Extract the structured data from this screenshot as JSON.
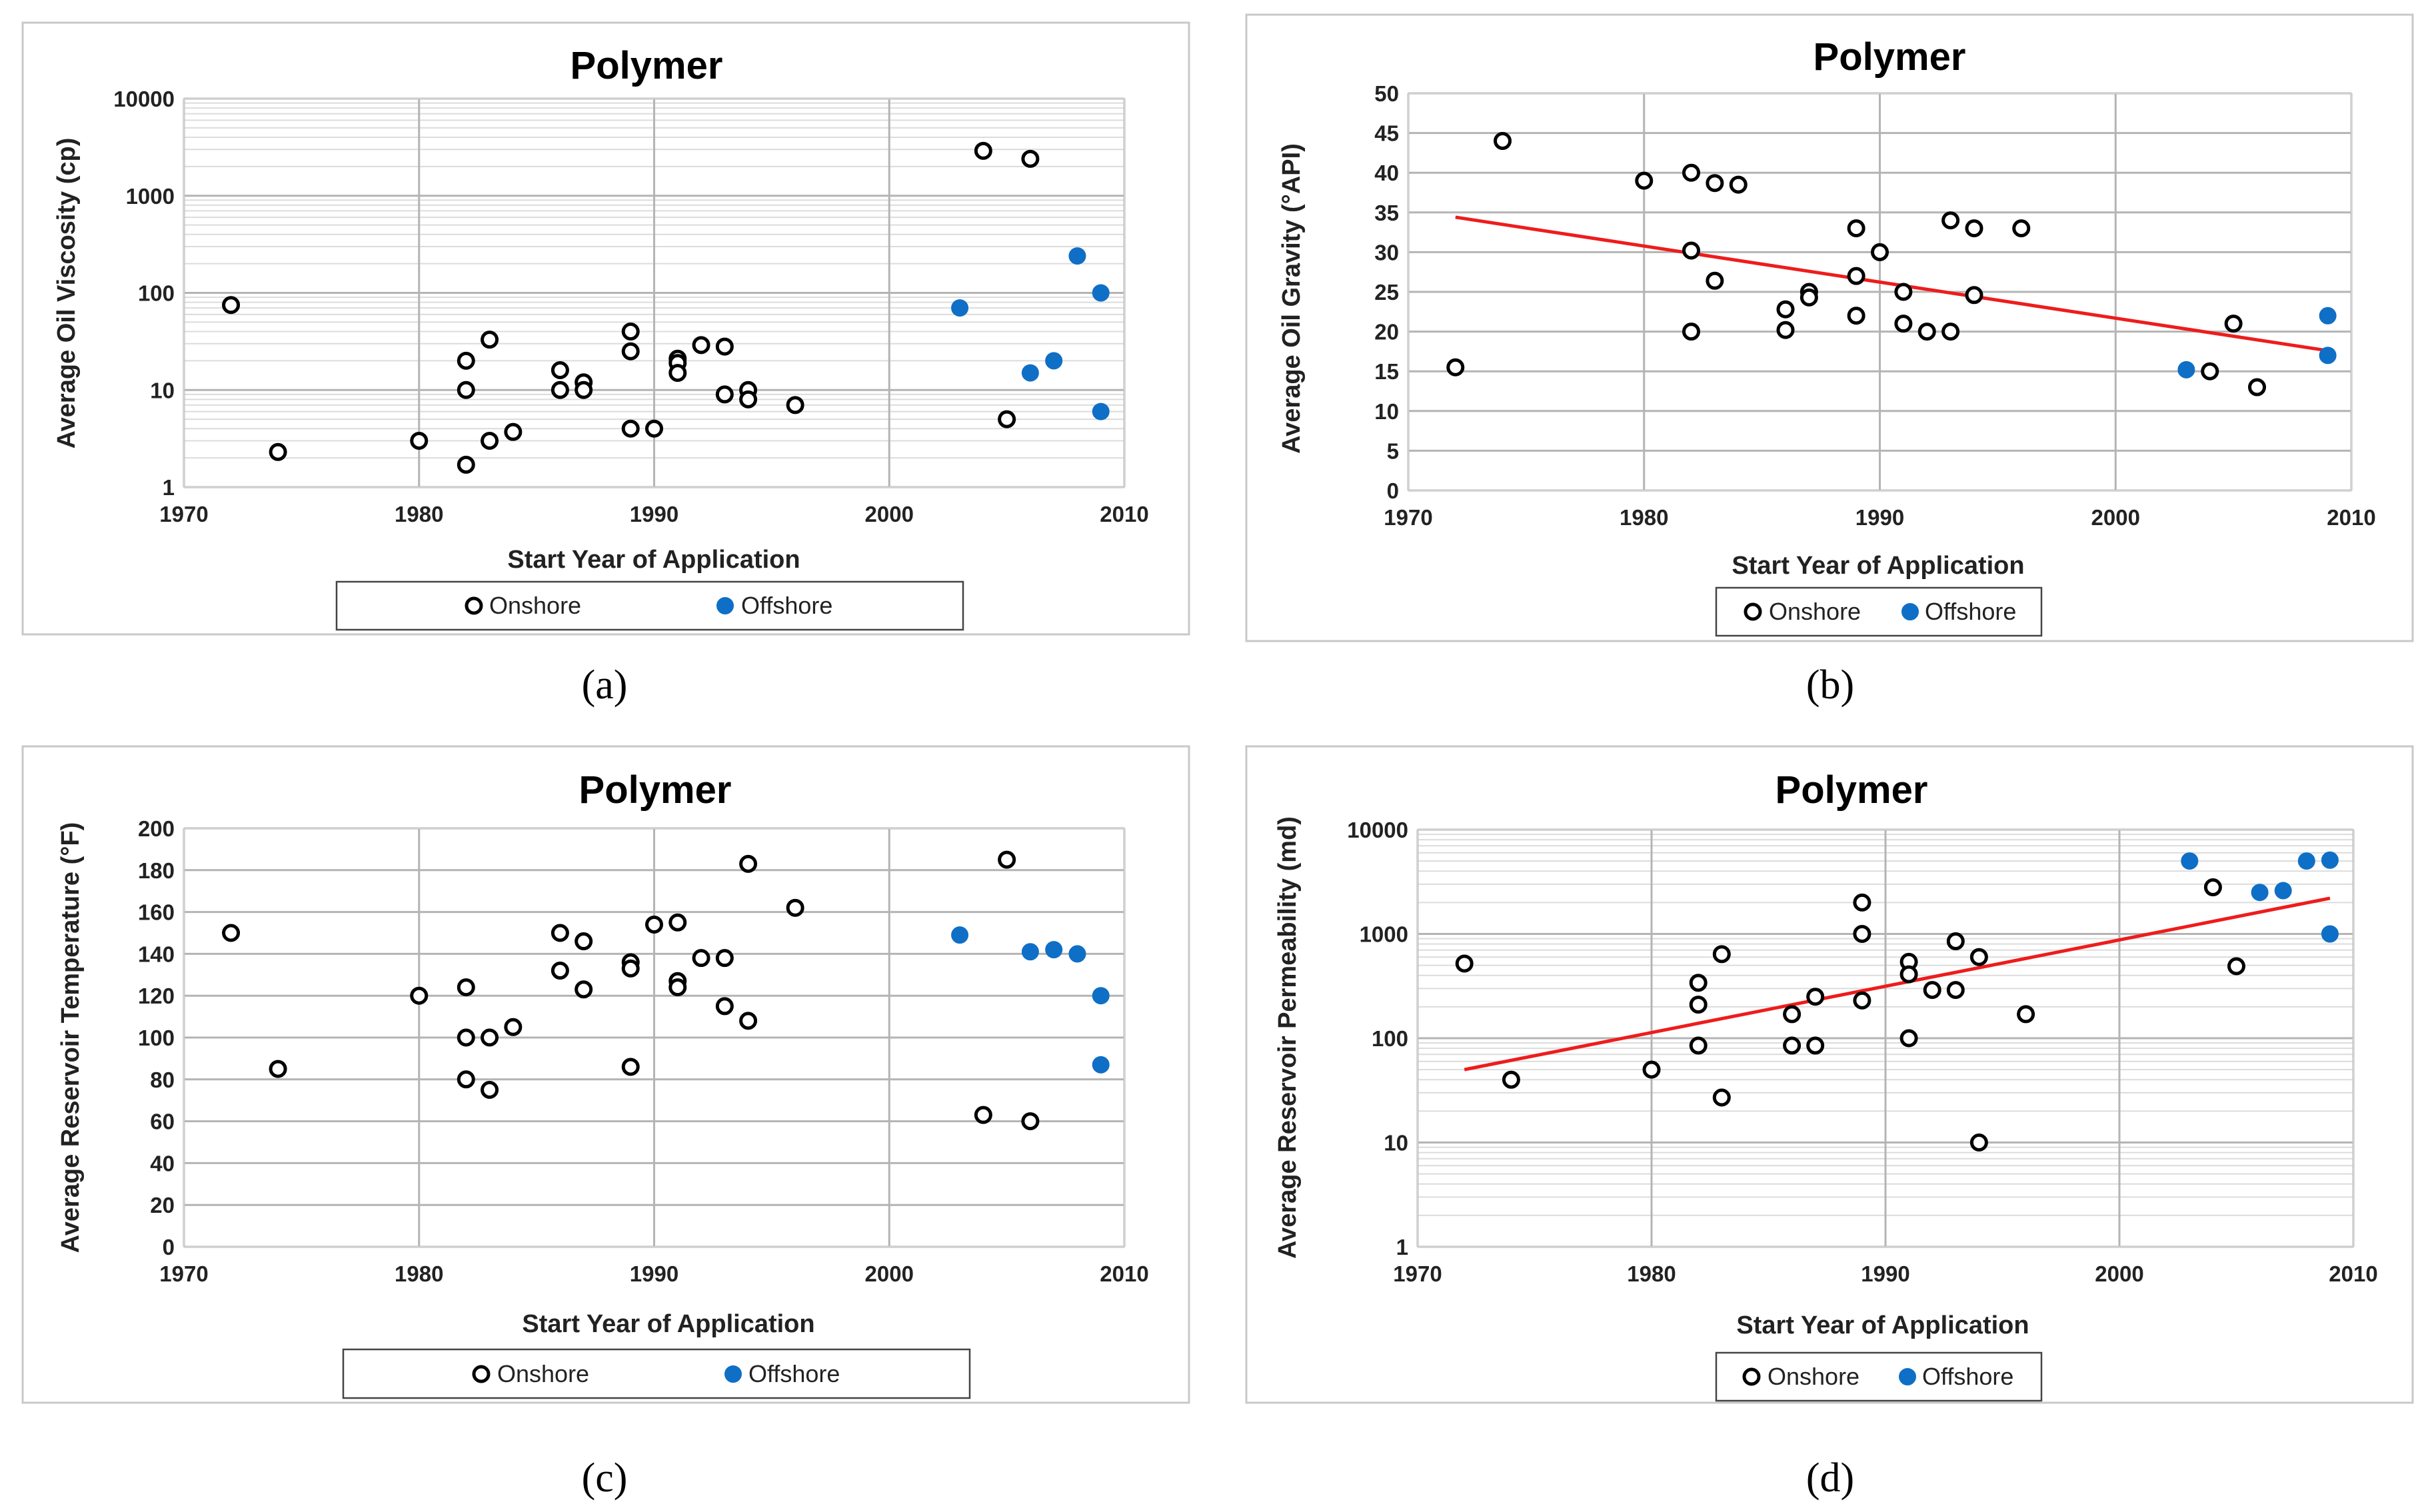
{
  "chart_data": [
    {
      "id": "a",
      "type": "scatter",
      "title": "Polymer",
      "caption": "(a)",
      "xlabel": "Start Year of Application",
      "ylabel": "Average Oil Viscosity (cp)",
      "yscale": "log",
      "xlim": [
        1970,
        2010
      ],
      "ylim": [
        1,
        10000
      ],
      "xticks": [
        1970,
        1980,
        1990,
        2000,
        2010
      ],
      "yticks": [
        1,
        10,
        100,
        1000,
        10000
      ],
      "grid": true,
      "legend_position": "bottom",
      "series": [
        {
          "name": "Onshore",
          "style": "open",
          "points": [
            [
              1972,
              75
            ],
            [
              1974,
              2.3
            ],
            [
              1980,
              3
            ],
            [
              1982,
              20
            ],
            [
              1982,
              10
            ],
            [
              1982,
              1.7
            ],
            [
              1983,
              33
            ],
            [
              1983,
              3
            ],
            [
              1984,
              3.7
            ],
            [
              1986,
              16
            ],
            [
              1986,
              10
            ],
            [
              1987,
              12
            ],
            [
              1987,
              10
            ],
            [
              1989,
              40
            ],
            [
              1989,
              25
            ],
            [
              1989,
              4
            ],
            [
              1990,
              4
            ],
            [
              1991,
              21
            ],
            [
              1991,
              19
            ],
            [
              1991,
              15
            ],
            [
              1992,
              29
            ],
            [
              1993,
              28
            ],
            [
              1993,
              9
            ],
            [
              1994,
              10
            ],
            [
              1994,
              8
            ],
            [
              1996,
              7
            ],
            [
              2004,
              2900
            ],
            [
              2005,
              5
            ],
            [
              2006,
              2400
            ]
          ]
        },
        {
          "name": "Offshore",
          "style": "filled",
          "points": [
            [
              2003,
              70
            ],
            [
              2006,
              15
            ],
            [
              2007,
              20
            ],
            [
              2008,
              240
            ],
            [
              2009,
              100
            ],
            [
              2009,
              6
            ]
          ]
        }
      ],
      "trendline": null
    },
    {
      "id": "b",
      "type": "scatter",
      "title": "Polymer",
      "caption": "(b)",
      "xlabel": "Start Year of Application",
      "ylabel": "Average Oil Gravity (°API)",
      "yscale": "linear",
      "xlim": [
        1970,
        2010
      ],
      "ylim": [
        0,
        50
      ],
      "xticks": [
        1970,
        1980,
        1990,
        2000,
        2010
      ],
      "yticks": [
        0,
        5,
        10,
        15,
        20,
        25,
        30,
        35,
        40,
        45,
        50
      ],
      "grid": true,
      "legend_position": "bottom",
      "series": [
        {
          "name": "Onshore",
          "style": "open",
          "points": [
            [
              1972,
              15.5
            ],
            [
              1974,
              44
            ],
            [
              1980,
              39
            ],
            [
              1982,
              40
            ],
            [
              1982,
              30.2
            ],
            [
              1982,
              20
            ],
            [
              1983,
              38.7
            ],
            [
              1983,
              26.4
            ],
            [
              1984,
              38.5
            ],
            [
              1986,
              22.8
            ],
            [
              1986,
              20.2
            ],
            [
              1987,
              25
            ],
            [
              1987,
              24.3
            ],
            [
              1989,
              33
            ],
            [
              1989,
              27
            ],
            [
              1989,
              22
            ],
            [
              1990,
              30
            ],
            [
              1991,
              25
            ],
            [
              1991,
              21
            ],
            [
              1992,
              20
            ],
            [
              1993,
              34
            ],
            [
              1993,
              20
            ],
            [
              1994,
              33
            ],
            [
              1994,
              24.6
            ],
            [
              1996,
              33
            ],
            [
              2004,
              15
            ],
            [
              2005,
              21
            ],
            [
              2006,
              13
            ]
          ]
        },
        {
          "name": "Offshore",
          "style": "filled",
          "points": [
            [
              2003,
              15.2
            ],
            [
              2009,
              22
            ],
            [
              2009,
              17
            ]
          ]
        }
      ],
      "trendline": {
        "x": [
          1972,
          2009
        ],
        "y": [
          34.4,
          17.6
        ]
      }
    },
    {
      "id": "c",
      "type": "scatter",
      "title": "Polymer",
      "caption": "(c)",
      "xlabel": "Start Year of Application",
      "ylabel": "Average Reservoir Temperature (°F)",
      "yscale": "linear",
      "xlim": [
        1970,
        2010
      ],
      "ylim": [
        0,
        200
      ],
      "xticks": [
        1970,
        1980,
        1990,
        2000,
        2010
      ],
      "yticks": [
        0,
        20,
        40,
        60,
        80,
        100,
        120,
        140,
        160,
        180,
        200
      ],
      "grid": true,
      "legend_position": "bottom",
      "series": [
        {
          "name": "Onshore",
          "style": "open",
          "points": [
            [
              1972,
              150
            ],
            [
              1974,
              85
            ],
            [
              1980,
              120
            ],
            [
              1982,
              124
            ],
            [
              1982,
              100
            ],
            [
              1982,
              80
            ],
            [
              1983,
              100
            ],
            [
              1983,
              75
            ],
            [
              1984,
              105
            ],
            [
              1986,
              150
            ],
            [
              1986,
              132
            ],
            [
              1987,
              146
            ],
            [
              1987,
              123
            ],
            [
              1989,
              136
            ],
            [
              1989,
              133
            ],
            [
              1989,
              86
            ],
            [
              1990,
              154
            ],
            [
              1991,
              155
            ],
            [
              1991,
              127
            ],
            [
              1991,
              124
            ],
            [
              1992,
              138
            ],
            [
              1993,
              138
            ],
            [
              1993,
              115
            ],
            [
              1994,
              183
            ],
            [
              1994,
              108
            ],
            [
              1996,
              162
            ],
            [
              2004,
              63
            ],
            [
              2005,
              185
            ],
            [
              2006,
              60
            ]
          ]
        },
        {
          "name": "Offshore",
          "style": "filled",
          "points": [
            [
              2003,
              149
            ],
            [
              2006,
              141
            ],
            [
              2007,
              142
            ],
            [
              2008,
              140
            ],
            [
              2009,
              120
            ],
            [
              2009,
              87
            ]
          ]
        }
      ],
      "trendline": null
    },
    {
      "id": "d",
      "type": "scatter",
      "title": "Polymer",
      "caption": "(d)",
      "xlabel": "Start Year of Application",
      "ylabel": "Average Reservoir Permeability (md)",
      "yscale": "log",
      "xlim": [
        1970,
        2010
      ],
      "ylim": [
        1,
        10000
      ],
      "xticks": [
        1970,
        1980,
        1990,
        2000,
        2010
      ],
      "yticks": [
        1,
        10,
        100,
        1000,
        10000
      ],
      "grid": true,
      "legend_position": "bottom",
      "series": [
        {
          "name": "Onshore",
          "style": "open",
          "points": [
            [
              1972,
              520
            ],
            [
              1974,
              40
            ],
            [
              1980,
              50
            ],
            [
              1982,
              340
            ],
            [
              1982,
              210
            ],
            [
              1982,
              85
            ],
            [
              1983,
              640
            ],
            [
              1983,
              27
            ],
            [
              1986,
              170
            ],
            [
              1986,
              85
            ],
            [
              1987,
              250
            ],
            [
              1987,
              85
            ],
            [
              1989,
              2000
            ],
            [
              1989,
              1000
            ],
            [
              1989,
              230
            ],
            [
              1991,
              540
            ],
            [
              1991,
              410
            ],
            [
              1991,
              100
            ],
            [
              1992,
              290
            ],
            [
              1993,
              850
            ],
            [
              1993,
              290
            ],
            [
              1994,
              600
            ],
            [
              1994,
              10
            ],
            [
              1996,
              170
            ],
            [
              2004,
              2800
            ],
            [
              2005,
              490
            ]
          ]
        },
        {
          "name": "Offshore",
          "style": "filled",
          "points": [
            [
              2003,
              5000
            ],
            [
              2006,
              2500
            ],
            [
              2007,
              2600
            ],
            [
              2008,
              5000
            ],
            [
              2009,
              5100
            ],
            [
              2009,
              1000
            ]
          ]
        }
      ],
      "trendline": {
        "x": [
          1972,
          2009
        ],
        "y": [
          50,
          2200
        ]
      }
    }
  ]
}
